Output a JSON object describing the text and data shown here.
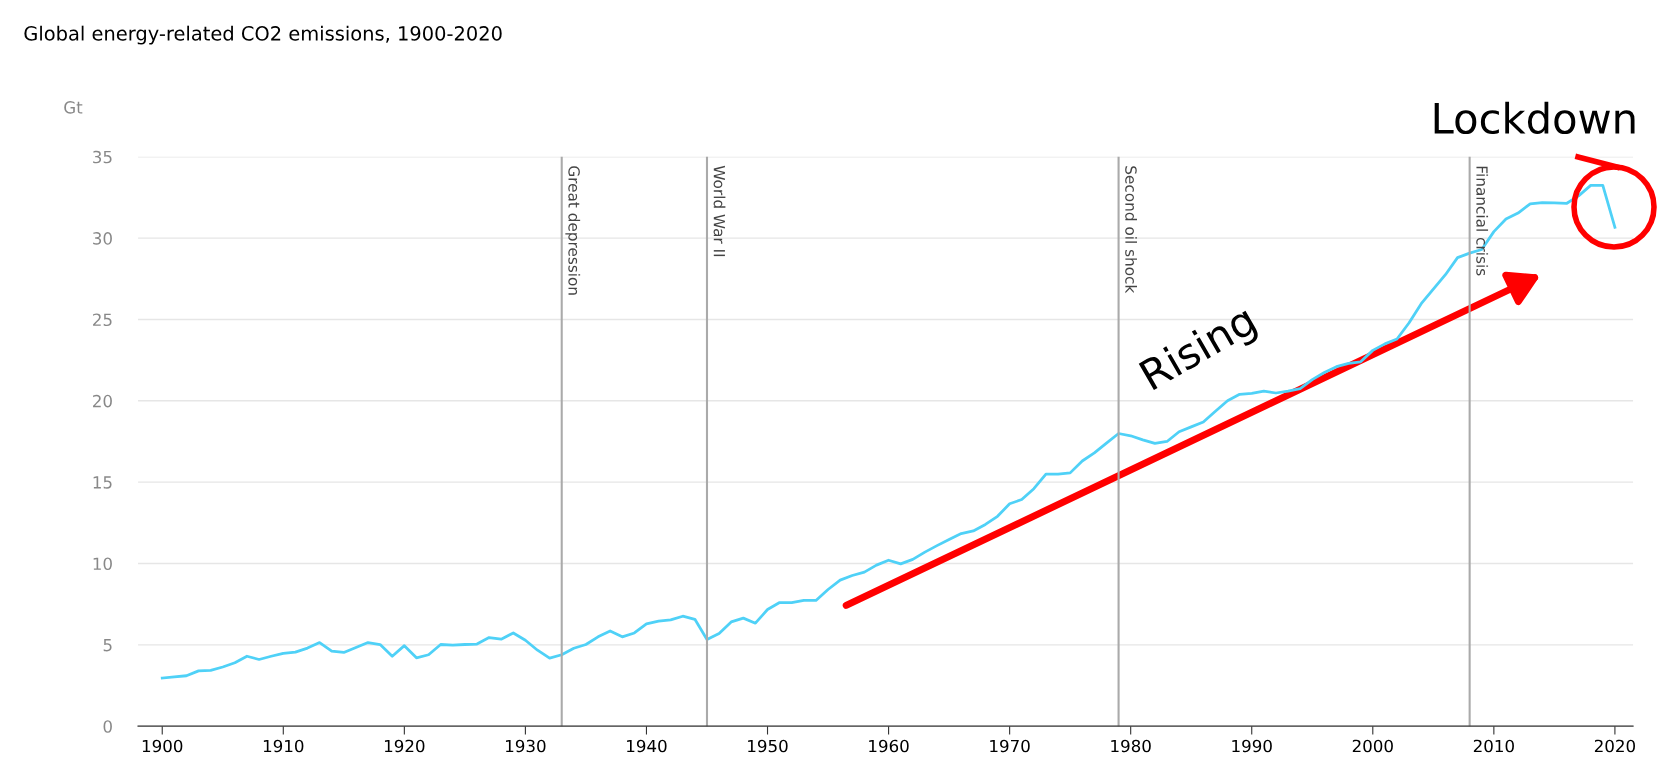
{
  "chart_data": {
    "type": "line",
    "title": "Global energy-related CO2 emissions, 1900-2020",
    "ylabel": "Gt",
    "x": [
      1900,
      1901,
      1902,
      1903,
      1904,
      1905,
      1906,
      1907,
      1908,
      1909,
      1910,
      1911,
      1912,
      1913,
      1914,
      1915,
      1916,
      1917,
      1918,
      1919,
      1920,
      1921,
      1922,
      1923,
      1924,
      1925,
      1926,
      1927,
      1928,
      1929,
      1930,
      1931,
      1932,
      1933,
      1934,
      1935,
      1936,
      1937,
      1938,
      1939,
      1940,
      1941,
      1942,
      1943,
      1944,
      1945,
      1946,
      1947,
      1948,
      1949,
      1950,
      1951,
      1952,
      1953,
      1954,
      1955,
      1956,
      1957,
      1958,
      1959,
      1960,
      1961,
      1962,
      1963,
      1964,
      1965,
      1966,
      1967,
      1968,
      1969,
      1970,
      1971,
      1972,
      1973,
      1974,
      1975,
      1976,
      1977,
      1978,
      1979,
      1980,
      1981,
      1982,
      1983,
      1984,
      1985,
      1986,
      1987,
      1988,
      1989,
      1990,
      1991,
      1992,
      1993,
      1994,
      1995,
      1996,
      1997,
      1998,
      1999,
      2000,
      2001,
      2002,
      2003,
      2004,
      2005,
      2006,
      2007,
      2008,
      2009,
      2010,
      2011,
      2012,
      2013,
      2014,
      2015,
      2016,
      2017,
      2018,
      2019,
      2020
    ],
    "series": [
      {
        "color": "#4fd1f7",
        "values": [
          2.96,
          3.03,
          3.1,
          3.4,
          3.43,
          3.64,
          3.9,
          4.3,
          4.1,
          4.3,
          4.48,
          4.55,
          4.8,
          5.14,
          4.62,
          4.53,
          4.84,
          5.14,
          5.02,
          4.3,
          4.95,
          4.2,
          4.39,
          5.02,
          4.98,
          5.02,
          5.05,
          5.45,
          5.35,
          5.73,
          5.28,
          4.67,
          4.18,
          4.39,
          4.79,
          5.02,
          5.49,
          5.85,
          5.49,
          5.73,
          6.29,
          6.46,
          6.53,
          6.76,
          6.57,
          5.33,
          5.7,
          6.41,
          6.64,
          6.33,
          7.17,
          7.6,
          7.6,
          7.73,
          7.73,
          8.4,
          8.98,
          9.26,
          9.47,
          9.9,
          10.2,
          9.98,
          10.25,
          10.7,
          11.1,
          11.48,
          11.84,
          12.0,
          12.4,
          12.9,
          13.67,
          13.93,
          14.6,
          15.5,
          15.5,
          15.57,
          16.3,
          16.8,
          17.4,
          17.99,
          17.85,
          17.6,
          17.38,
          17.5,
          18.1,
          18.4,
          18.7,
          19.36,
          20.0,
          20.4,
          20.46,
          20.6,
          20.48,
          20.6,
          20.75,
          21.3,
          21.74,
          22.1,
          22.3,
          22.4,
          23.1,
          23.5,
          23.8,
          24.8,
          25.97,
          26.87,
          27.75,
          28.8,
          29.08,
          29.3,
          30.4,
          31.17,
          31.54,
          32.1,
          32.18,
          32.16,
          32.13,
          32.6,
          33.24,
          33.24,
          30.66
        ]
      }
    ],
    "xlim": [
      1898,
      2021.5
    ],
    "ylim": [
      0,
      35
    ],
    "xticks": [
      1900,
      1910,
      1920,
      1930,
      1940,
      1950,
      1960,
      1970,
      1980,
      1990,
      2000,
      2010,
      2020
    ],
    "yticks": [
      0,
      5,
      10,
      15,
      20,
      25,
      30,
      35
    ],
    "grid": "y",
    "legend": false,
    "marker": "none",
    "line_style": "solid",
    "ref_lines": [
      {
        "axis": "x",
        "value": 1933,
        "label": "Great depression",
        "color": "#aaaaaa"
      },
      {
        "axis": "x",
        "value": 1945,
        "label": "World War II",
        "color": "#aaaaaa"
      },
      {
        "axis": "x",
        "value": 1979,
        "label": "Second oil shock",
        "color": "#aaaaaa"
      },
      {
        "axis": "x",
        "value": 2008,
        "label": "Financial crisis",
        "color": "#aaaaaa"
      }
    ],
    "annotations": [
      "Rising",
      "Lockdown"
    ]
  }
}
